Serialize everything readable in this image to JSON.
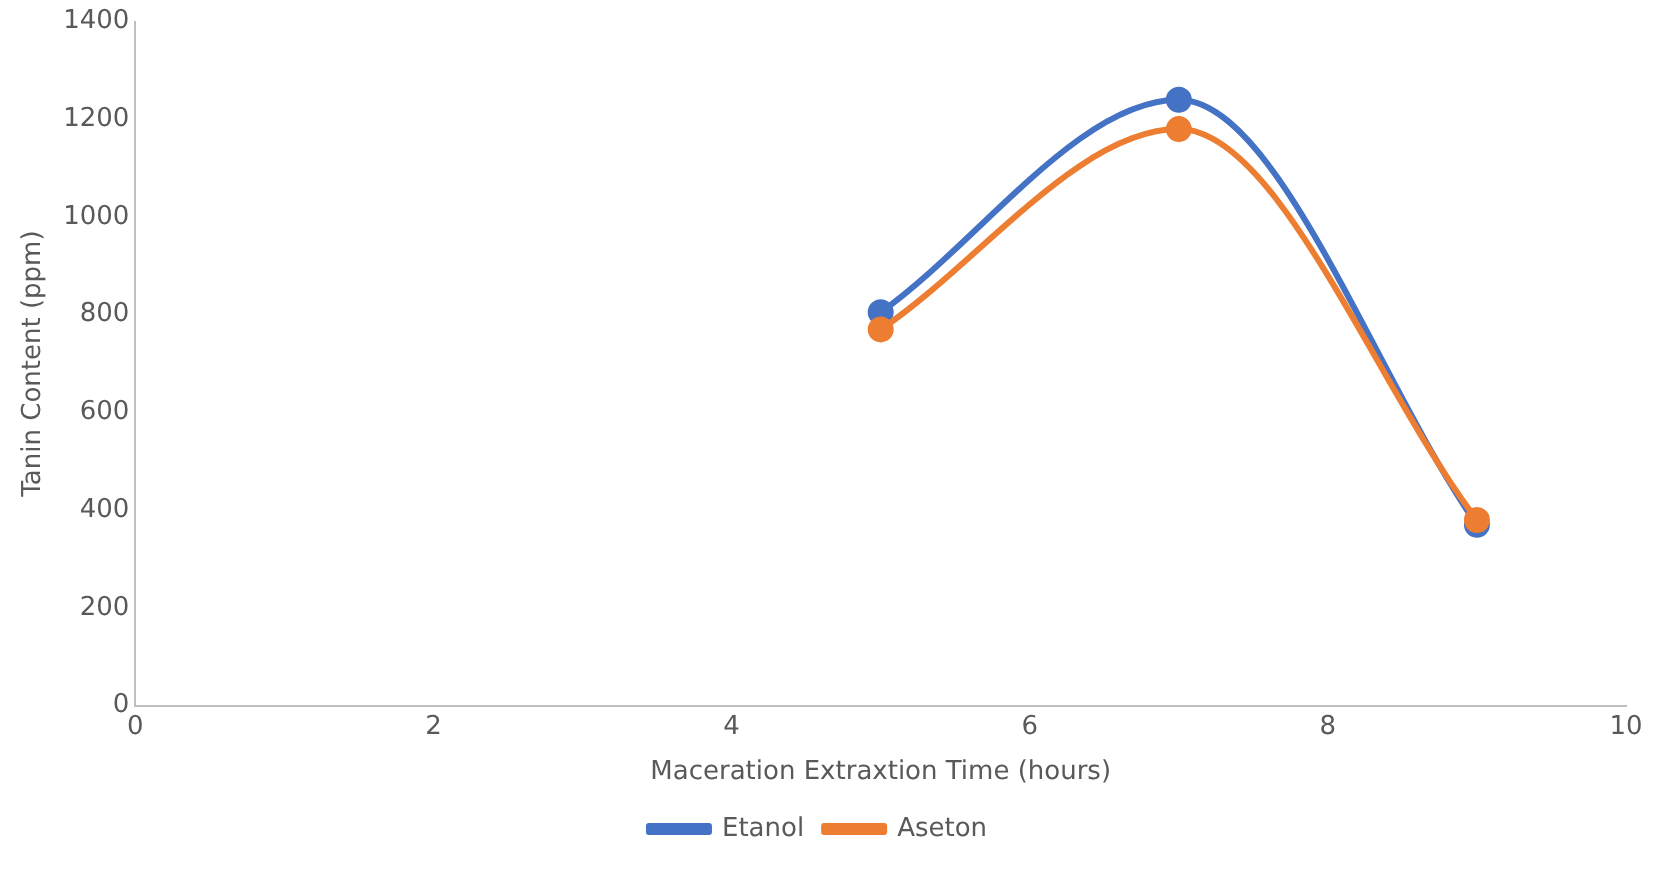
{
  "chart_data": {
    "type": "line",
    "xlabel": "Maceration Extraxtion Time (hours)",
    "ylabel": "Tanin Content (ppm)",
    "x": [
      5,
      7,
      9
    ],
    "series": [
      {
        "name": "Etanol",
        "color": "#4472c4",
        "values": [
          805,
          1240,
          370
        ]
      },
      {
        "name": "Aseton",
        "color": "#ed7d31",
        "values": [
          770,
          1180,
          380
        ]
      }
    ],
    "xlim": [
      0,
      10
    ],
    "xticks": [
      0,
      2,
      4,
      6,
      8,
      10
    ],
    "ylim": [
      0,
      1400
    ],
    "yticks": [
      0,
      200,
      400,
      600,
      800,
      1000,
      1200,
      1400
    ],
    "grid": false,
    "legend": "bottom",
    "marker": "circle",
    "line_style": "solid"
  }
}
